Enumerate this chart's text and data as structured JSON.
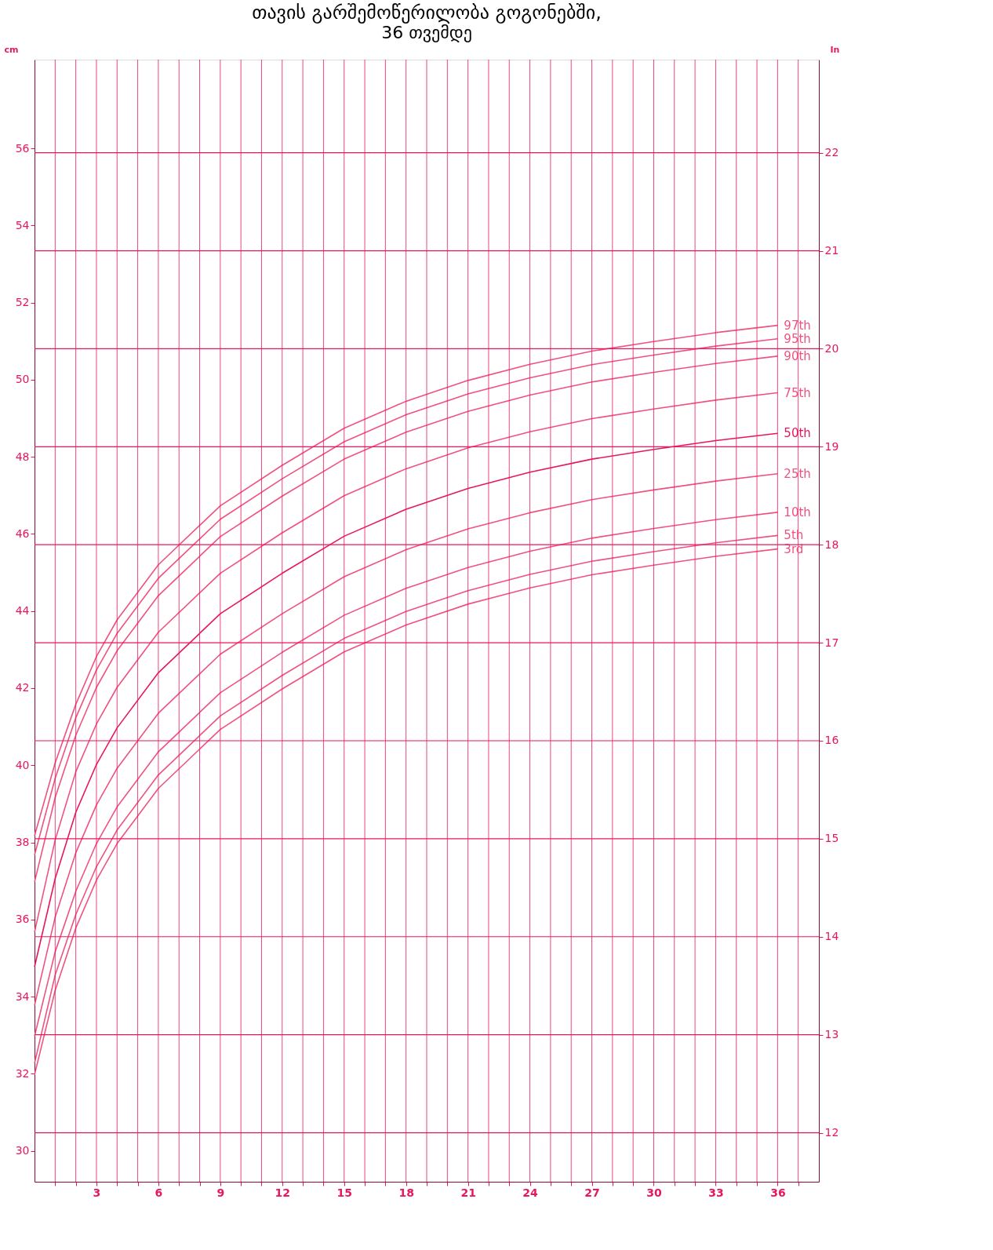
{
  "chart_data": {
    "type": "line",
    "title": "თავის გარშემოწერილობა გოგონებში,",
    "subtitle": "36 თვემდე",
    "ylabel": "cm",
    "y2label": "In",
    "x": [
      0,
      1,
      2,
      3,
      4,
      6,
      9,
      12,
      15,
      18,
      21,
      24,
      27,
      30,
      33,
      36
    ],
    "xlim": [
      0,
      38
    ],
    "xticks": [
      {
        "value": 1,
        "label": null
      },
      {
        "value": 2,
        "label": null
      },
      3,
      {
        "value": 4,
        "label": null
      },
      {
        "value": 5,
        "label": null
      },
      6,
      {
        "value": 7,
        "label": null
      },
      {
        "value": 8,
        "label": null
      },
      9,
      {
        "value": 10,
        "label": null
      },
      {
        "value": 11,
        "label": null
      },
      12,
      {
        "value": 13,
        "label": null
      },
      {
        "value": 14,
        "label": null
      },
      15,
      {
        "value": 16,
        "label": null
      },
      {
        "value": 17,
        "label": null
      },
      18,
      {
        "value": 19,
        "label": null
      },
      {
        "value": 20,
        "label": null
      },
      21,
      {
        "value": 22,
        "label": null
      },
      {
        "value": 23,
        "label": null
      },
      24,
      {
        "value": 25,
        "label": null
      },
      {
        "value": 26,
        "label": null
      },
      27,
      {
        "value": 28,
        "label": null
      },
      {
        "value": 29,
        "label": null
      },
      30,
      {
        "value": 31,
        "label": null
      },
      {
        "value": 32,
        "label": null
      },
      33,
      {
        "value": 34,
        "label": null
      },
      {
        "value": 35,
        "label": null
      },
      36,
      {
        "value": 37,
        "label": null
      }
    ],
    "ylim": [
      29.2,
      58.3
    ],
    "yticks": [
      30,
      32,
      34,
      36,
      38,
      40,
      42,
      44,
      46,
      48,
      50,
      52,
      54,
      56
    ],
    "y2lim": [
      11.5,
      22.95
    ],
    "y2ticks": [
      12,
      13,
      14,
      15,
      16,
      17,
      18,
      19,
      20,
      21,
      22
    ],
    "grid": true,
    "legend": false,
    "line_style": "solid",
    "marker": "none",
    "series": [
      {
        "name": "97th",
        "color": "#f0527f",
        "values": [
          38.17,
          40.06,
          41.58,
          42.82,
          43.77,
          45.2,
          46.73,
          47.78,
          48.74,
          49.44,
          49.98,
          50.4,
          50.74,
          50.99,
          51.22,
          51.41
        ]
      },
      {
        "name": "95th",
        "color": "#f0527f",
        "values": [
          37.67,
          39.66,
          41.23,
          42.47,
          43.42,
          44.85,
          46.38,
          47.43,
          48.39,
          49.09,
          49.63,
          50.05,
          50.39,
          50.64,
          50.87,
          51.06
        ]
      },
      {
        "name": "90th",
        "color": "#f0527f",
        "values": [
          36.97,
          39.16,
          40.78,
          42.02,
          42.97,
          44.4,
          45.93,
          46.98,
          47.94,
          48.64,
          49.18,
          49.6,
          49.94,
          50.19,
          50.42,
          50.61
        ]
      },
      {
        "name": "75th",
        "color": "#f0527f",
        "values": [
          35.67,
          38.06,
          39.83,
          41.07,
          42.02,
          43.45,
          44.98,
          46.03,
          46.99,
          47.69,
          48.23,
          48.65,
          48.99,
          49.24,
          49.47,
          49.66
        ]
      },
      {
        "name": "50th",
        "color": "#e8175d",
        "values": [
          34.77,
          37.06,
          38.78,
          40.02,
          40.97,
          42.4,
          43.93,
          44.98,
          45.94,
          46.64,
          47.18,
          47.6,
          47.94,
          48.19,
          48.42,
          48.61
        ]
      },
      {
        "name": "25th",
        "color": "#f0527f",
        "values": [
          33.77,
          36.06,
          37.73,
          38.97,
          39.92,
          41.35,
          42.88,
          43.93,
          44.89,
          45.59,
          46.13,
          46.55,
          46.89,
          47.14,
          47.37,
          47.56
        ]
      },
      {
        "name": "10th",
        "color": "#f0527f",
        "values": [
          32.97,
          35.16,
          36.73,
          37.97,
          38.92,
          40.35,
          41.88,
          42.93,
          43.89,
          44.59,
          45.13,
          45.55,
          45.89,
          46.14,
          46.37,
          46.56
        ]
      },
      {
        "name": "5th",
        "color": "#f0527f",
        "values": [
          32.27,
          34.56,
          36.13,
          37.37,
          38.32,
          39.75,
          41.28,
          42.33,
          43.29,
          43.99,
          44.53,
          44.95,
          45.29,
          45.54,
          45.77,
          45.96
        ]
      },
      {
        "name": "3rd",
        "color": "#f0527f",
        "values": [
          31.97,
          34.16,
          35.78,
          37.02,
          37.97,
          39.4,
          40.93,
          41.98,
          42.94,
          43.64,
          44.18,
          44.6,
          44.94,
          45.19,
          45.42,
          45.61
        ]
      }
    ]
  }
}
